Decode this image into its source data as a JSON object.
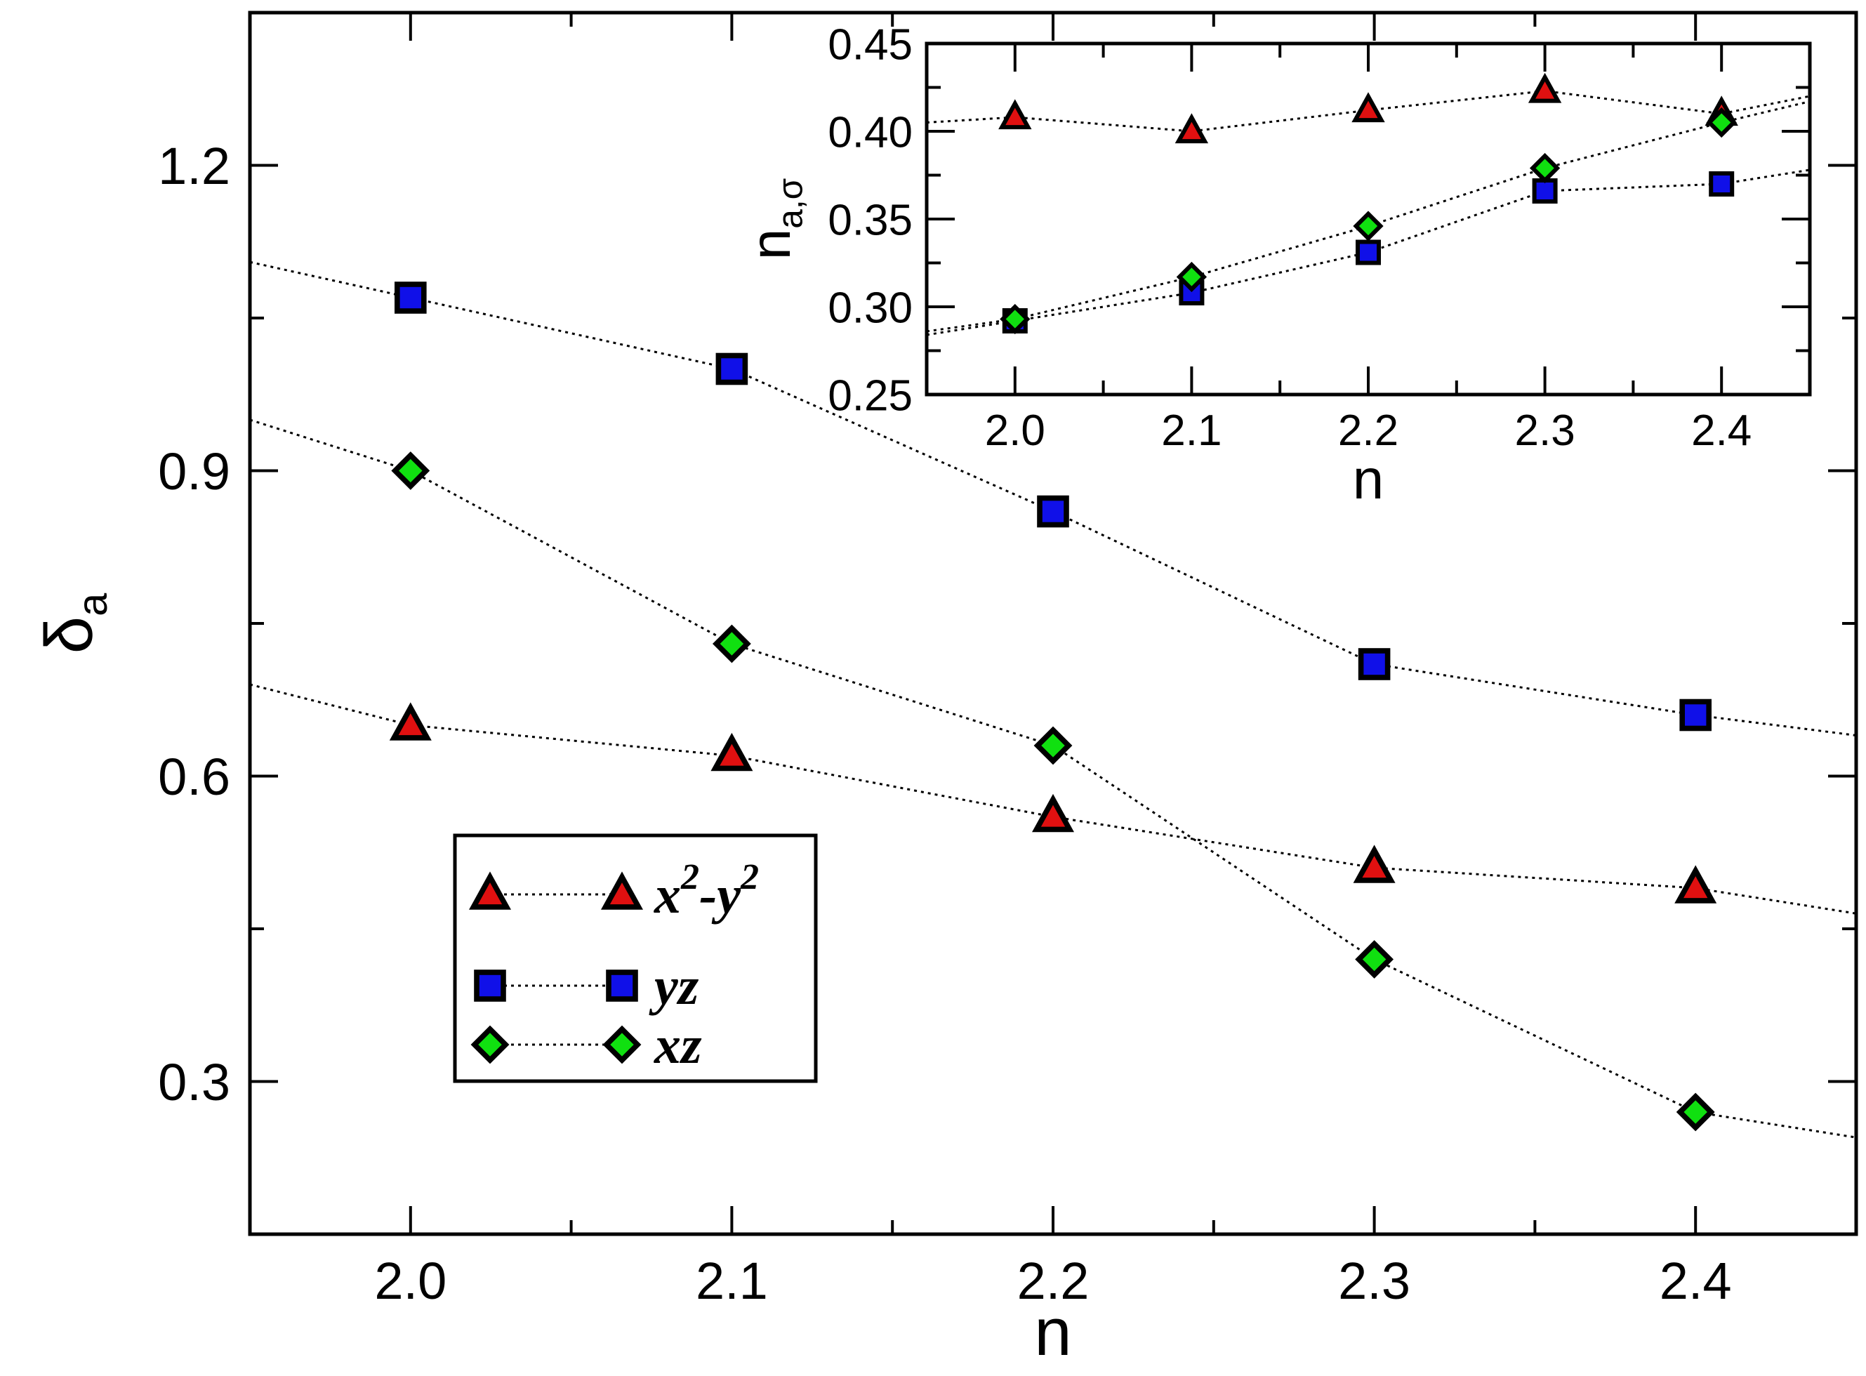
{
  "chart_data": [
    {
      "type": "scatter",
      "xlabel": "n",
      "ylabel": "δ",
      "ylabel_subscript": "a",
      "xlim": [
        1.95,
        2.45
      ],
      "ylim": [
        0.15,
        1.35
      ],
      "x_ticks": [
        "2.0",
        "2.1",
        "2.2",
        "2.3",
        "2.4"
      ],
      "x_tick_values": [
        2.0,
        2.1,
        2.2,
        2.3,
        2.4
      ],
      "y_ticks": [
        "0.3",
        "0.6",
        "0.9",
        "1.2"
      ],
      "y_tick_values": [
        0.3,
        0.6,
        0.9,
        1.2
      ],
      "grid": false,
      "legend_position": "bottom-left",
      "x": [
        2.0,
        2.1,
        2.2,
        2.3,
        2.4
      ],
      "series": [
        {
          "key": "x2y2",
          "name": "x2-y2",
          "marker": "triangle",
          "color": "#e01010",
          "values": [
            0.65,
            0.62,
            0.56,
            0.51,
            0.49
          ],
          "trend_ends": [
            0.69,
            0.465
          ]
        },
        {
          "key": "yz",
          "name": "yz",
          "marker": "square",
          "color": "#1010e8",
          "values": [
            1.07,
            1.0,
            0.86,
            0.71,
            0.66
          ],
          "trend_ends": [
            1.105,
            0.64
          ]
        },
        {
          "key": "xz",
          "name": "xz",
          "marker": "diamond",
          "color": "#10e010",
          "values": [
            0.9,
            0.73,
            0.63,
            0.42,
            0.27
          ],
          "trend_ends": [
            0.95,
            0.245
          ]
        }
      ]
    },
    {
      "type": "scatter",
      "inset": true,
      "xlabel": "n",
      "ylabel": "n",
      "ylabel_subscript": "a,σ",
      "xlim": [
        1.95,
        2.45
      ],
      "ylim": [
        0.25,
        0.45
      ],
      "x_ticks": [
        "2.0",
        "2.1",
        "2.2",
        "2.3",
        "2.4"
      ],
      "x_tick_values": [
        2.0,
        2.1,
        2.2,
        2.3,
        2.4
      ],
      "y_ticks": [
        "0.25",
        "0.30",
        "0.35",
        "0.40",
        "0.45"
      ],
      "y_tick_values": [
        0.25,
        0.3,
        0.35,
        0.4,
        0.45
      ],
      "grid": false,
      "x": [
        2.0,
        2.1,
        2.2,
        2.3,
        2.4
      ],
      "series": [
        {
          "key": "x2y2",
          "marker": "triangle",
          "color": "#e01010",
          "values": [
            0.408,
            0.4,
            0.412,
            0.423,
            0.41
          ],
          "trend_ends": [
            0.405,
            0.42
          ]
        },
        {
          "key": "yz",
          "marker": "square",
          "color": "#1010e8",
          "values": [
            0.292,
            0.308,
            0.331,
            0.366,
            0.37
          ],
          "trend_ends": [
            0.284,
            0.378
          ]
        },
        {
          "key": "xz",
          "marker": "diamond",
          "color": "#10e010",
          "values": [
            0.293,
            0.317,
            0.346,
            0.379,
            0.405
          ],
          "trend_ends": [
            0.286,
            0.417
          ]
        }
      ]
    }
  ]
}
